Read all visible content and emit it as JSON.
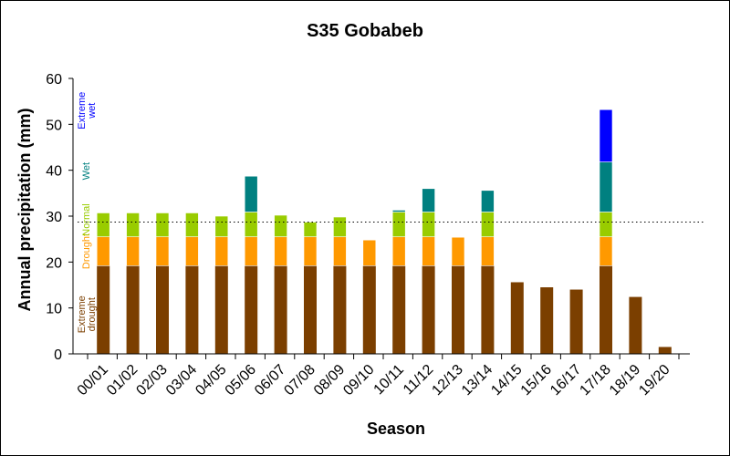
{
  "chart_data": {
    "type": "bar",
    "stacked": true,
    "title": "S35 Gobabeb",
    "xlabel": "Season",
    "ylabel": "Annual precipitation (mm)",
    "ylim": [
      0,
      60
    ],
    "yticks": [
      0,
      10,
      20,
      30,
      40,
      50,
      60
    ],
    "grid": false,
    "reference_line": 28.7,
    "categories": [
      "00/01",
      "01/02",
      "02/03",
      "03/04",
      "04/05",
      "05/06",
      "06/07",
      "07/08",
      "08/09",
      "09/10",
      "10/11",
      "11/12",
      "12/13",
      "13/14",
      "14/15",
      "15/16",
      "16/17",
      "17/18",
      "18/19",
      "19/20"
    ],
    "totals": [
      30.7,
      30.7,
      30.7,
      30.7,
      30.0,
      38.7,
      30.2,
      28.7,
      29.8,
      24.8,
      31.3,
      36.0,
      25.4,
      35.6,
      15.6,
      14.5,
      14.0,
      53.2,
      12.4,
      1.5
    ],
    "class_thresholds": [
      19.2,
      25.5,
      30.9,
      41.8
    ],
    "series": [
      {
        "name": "Extreme drought",
        "color": "#7B3F00"
      },
      {
        "name": "Drought",
        "color": "#FF9900"
      },
      {
        "name": "Normal",
        "color": "#99CC00"
      },
      {
        "name": "Wet",
        "color": "#008080"
      },
      {
        "name": "Extreme wet",
        "color": "#0000FF"
      }
    ],
    "reference_line_color": "#000000"
  }
}
